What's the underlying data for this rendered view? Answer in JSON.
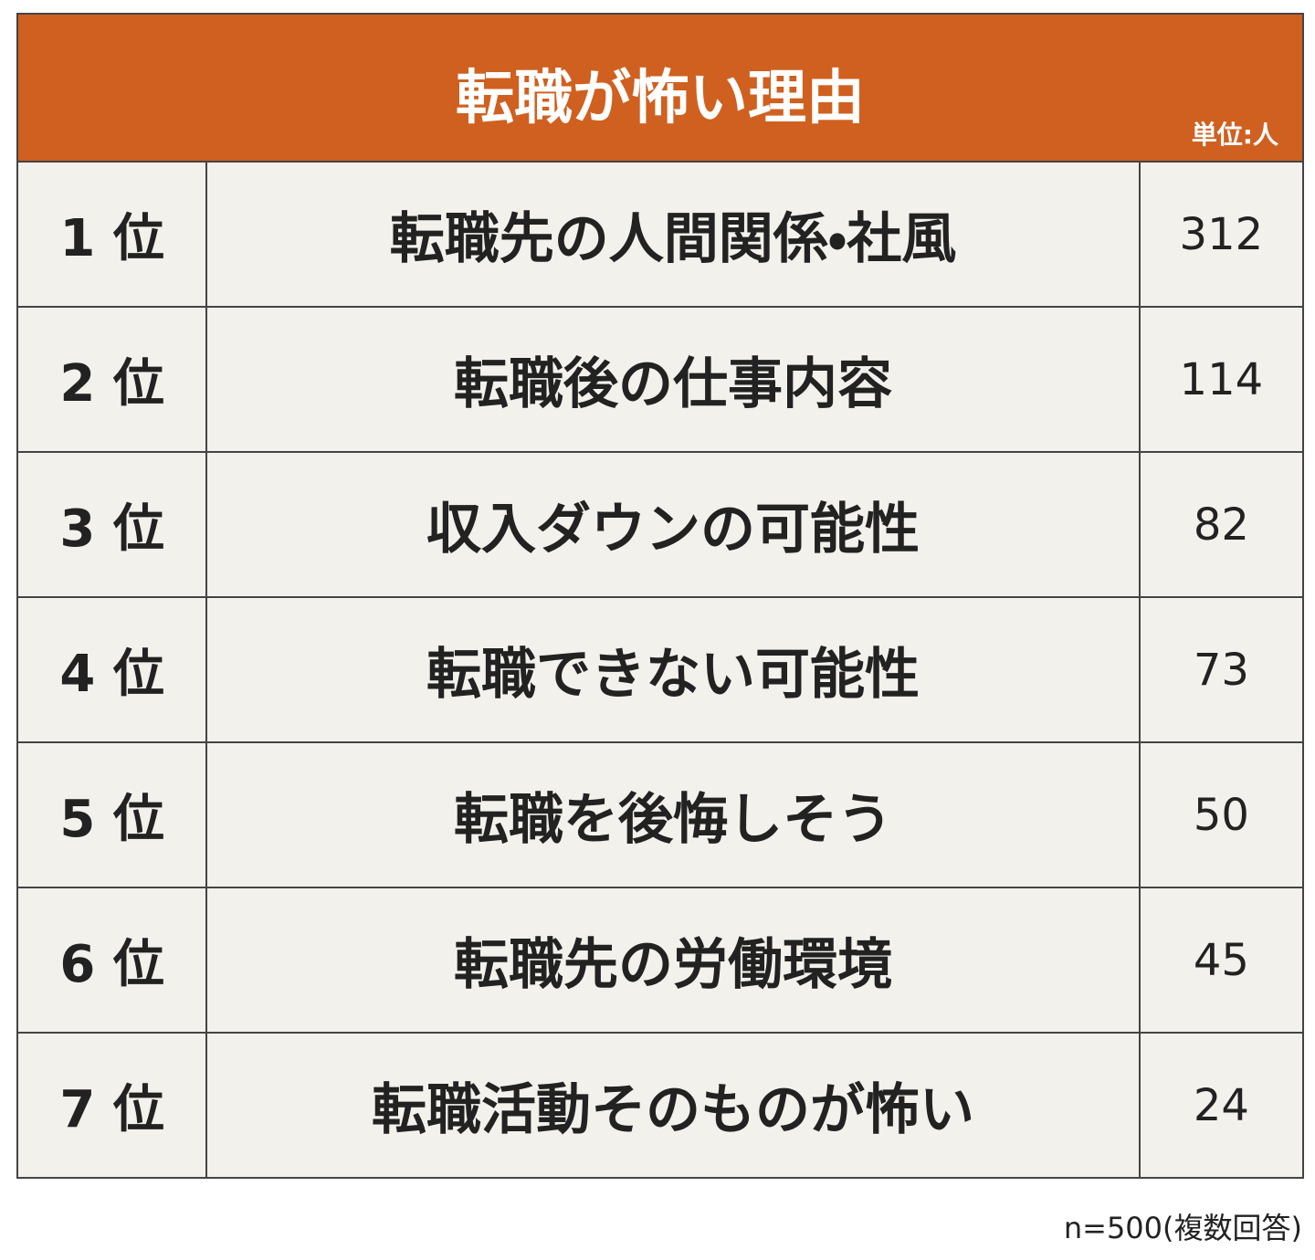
{
  "header": {
    "title": "転職が怖い理由",
    "unit": "単位:人"
  },
  "table": {
    "rows": [
      [
        "1 位",
        "転職先の人間関係・社風",
        312
      ],
      [
        "2 位",
        "転職後の仕事内容",
        114
      ],
      [
        "3 位",
        "収入ダウンの可能性",
        82
      ],
      [
        "4 位",
        "転職できない可能性",
        73
      ],
      [
        "5 位",
        "転職を後悔しそう",
        50
      ],
      [
        "6 位",
        "転職先の労働環境",
        45
      ],
      [
        "7 位",
        "転職活動そのものが怖い",
        24
      ]
    ]
  },
  "footer": {
    "note": "n=500(複数回答)"
  }
}
